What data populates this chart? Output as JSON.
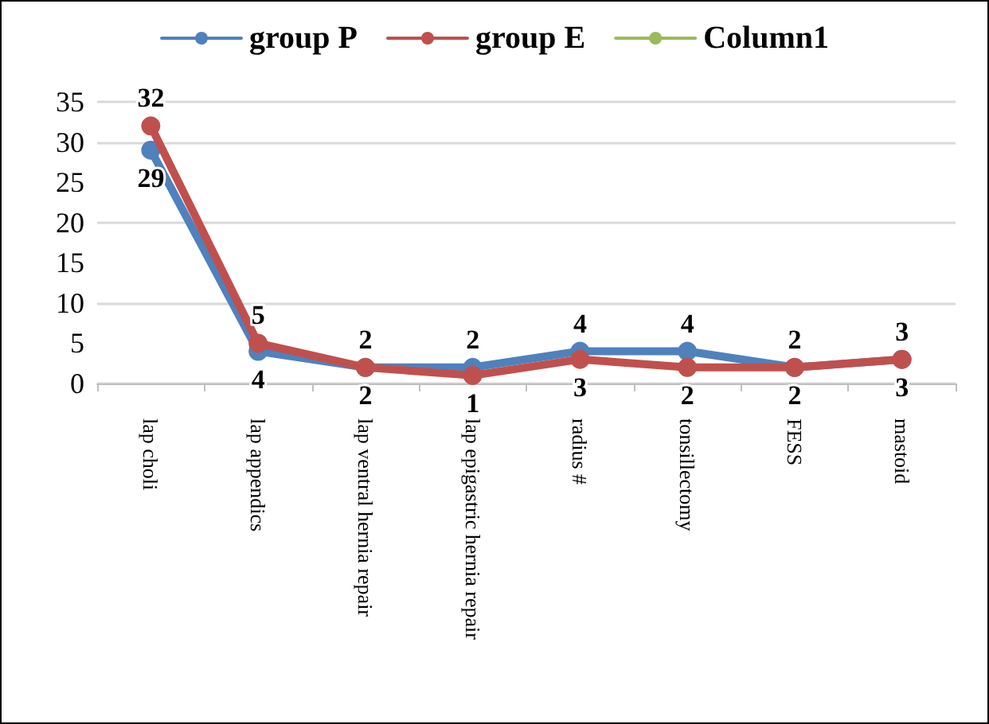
{
  "chart_data": {
    "type": "line",
    "categories": [
      "lap choli",
      "lap appendics",
      "lap ventral hernia repair",
      "lap epigastric hernia repair",
      "radius #",
      "tonsillectomy",
      "FESS",
      "mastoid"
    ],
    "series": [
      {
        "name": "group P",
        "color": "#4f81bd",
        "values": [
          29,
          4,
          2,
          2,
          4,
          4,
          2,
          3
        ]
      },
      {
        "name": "group E",
        "color": "#c0504d",
        "values": [
          32,
          5,
          2,
          1,
          3,
          2,
          2,
          3
        ]
      },
      {
        "name": "Column1",
        "color": "#9bbb59",
        "values": [
          null,
          null,
          null,
          null,
          null,
          null,
          null,
          null
        ]
      }
    ],
    "ylim": [
      0,
      35
    ],
    "yticks": [
      0,
      5,
      10,
      15,
      20,
      25,
      30,
      35
    ],
    "grid": "y",
    "legend": "top",
    "marker": "circle",
    "line_style": "solid",
    "data_labels": true
  }
}
